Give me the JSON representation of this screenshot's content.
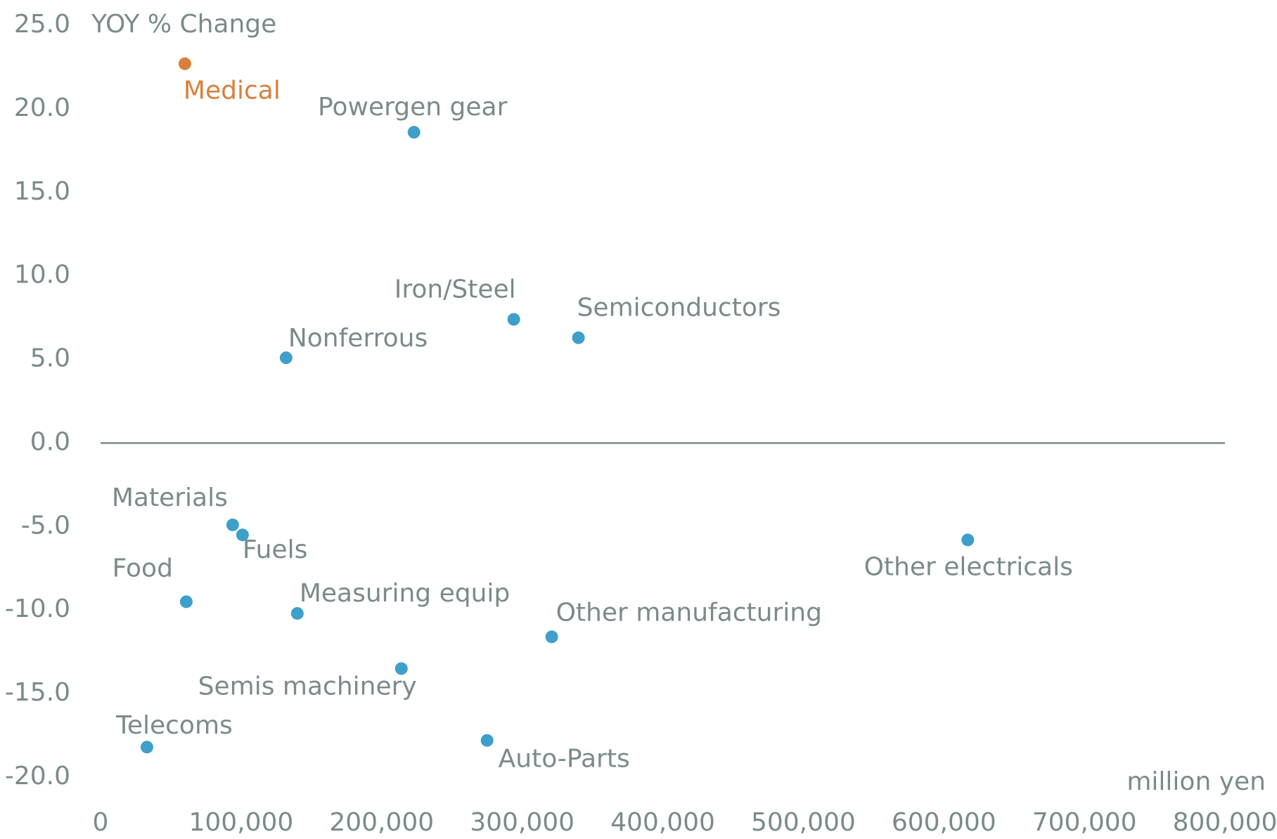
{
  "chart_data": {
    "type": "scatter",
    "y_axis_label": "YOY % Change",
    "x_axis_label": "million yen",
    "labels": [
      "Medical",
      "Powergen gear",
      "Iron/Steel",
      "Semiconductors",
      "Nonferrous",
      "Materials",
      "Fuels",
      "Food",
      "Measuring equip",
      "Other electricals",
      "Other manufacturing",
      "Semis machinery",
      "Telecoms",
      "Auto-Parts"
    ],
    "x": [
      60000,
      223000,
      294000,
      340000,
      132000,
      94000,
      101000,
      61000,
      140000,
      617000,
      321000,
      214000,
      33000,
      275000
    ],
    "y": [
      22.7,
      18.6,
      7.4,
      6.3,
      5.1,
      -4.9,
      -5.5,
      -9.5,
      -10.2,
      -5.8,
      -11.6,
      -13.5,
      -18.2,
      -17.8
    ],
    "colors": [
      "#d97f3a",
      "#3f9fcb",
      "#3f9fcb",
      "#3f9fcb",
      "#3f9fcb",
      "#3f9fcb",
      "#3f9fcb",
      "#3f9fcb",
      "#3f9fcb",
      "#3f9fcb",
      "#3f9fcb",
      "#3f9fcb",
      "#3f9fcb",
      "#3f9fcb"
    ],
    "xlim": [
      0,
      800000
    ],
    "xticks": [
      0,
      {
        "value": 100000,
        "label": "100,000"
      },
      {
        "value": 200000,
        "label": "200,000"
      },
      {
        "value": 300000,
        "label": "300,000"
      },
      {
        "value": 400000,
        "label": "400,000"
      },
      {
        "value": 500000,
        "label": "500,000"
      },
      {
        "value": 600000,
        "label": "600,000"
      },
      {
        "value": 700000,
        "label": "700,000"
      },
      {
        "value": 800000,
        "label": "800,000"
      }
    ],
    "ylim": [
      -20,
      25
    ],
    "yticks": [
      {
        "value": 25,
        "label": "25.0"
      },
      {
        "value": 20,
        "label": "20.0"
      },
      {
        "value": 15,
        "label": "15.0"
      },
      {
        "value": 10,
        "label": "10.0"
      },
      {
        "value": 5,
        "label": "5.0"
      },
      {
        "value": 0,
        "label": "0.0"
      },
      {
        "value": -5,
        "label": "-5.0"
      },
      {
        "value": -10,
        "label": "-10.0"
      },
      {
        "value": -15,
        "label": "-15.0"
      },
      {
        "value": -20,
        "label": "-20.0"
      }
    ],
    "zero_line": true
  }
}
